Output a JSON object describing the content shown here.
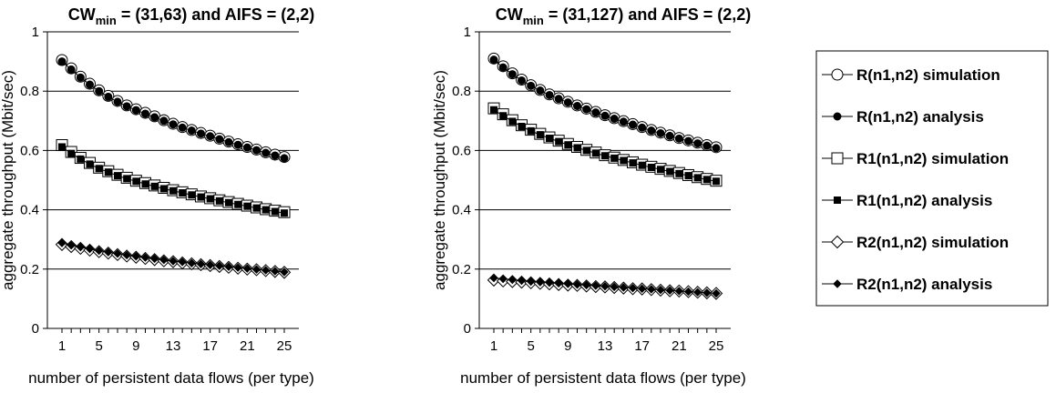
{
  "chart_data": [
    {
      "type": "line",
      "title": {
        "prefix": "CW",
        "sub": "min",
        "suffix": " = (31,63) and AIFS = (2,2)"
      },
      "xlabel": "number of persistent data flows (per type)",
      "ylabel": "aggregate throughput (Mbit/sec)",
      "xlim": [
        1,
        25
      ],
      "ylim": [
        0,
        1
      ],
      "xticks": [
        1,
        5,
        9,
        13,
        17,
        21,
        25
      ],
      "yticks": [
        "0",
        "0.2",
        "0.4",
        "0.6",
        "0.8",
        "1"
      ],
      "grid": "horizontal",
      "x": [
        1,
        2,
        3,
        4,
        5,
        6,
        7,
        8,
        9,
        10,
        11,
        12,
        13,
        14,
        15,
        16,
        17,
        18,
        19,
        20,
        21,
        22,
        23,
        24,
        25
      ],
      "series": [
        {
          "name": "R(n1,n2) simulation",
          "marker": "circle-open",
          "values": [
            0.905,
            0.877,
            0.849,
            0.825,
            0.803,
            0.784,
            0.767,
            0.752,
            0.739,
            0.727,
            0.715,
            0.702,
            0.69,
            0.679,
            0.669,
            0.659,
            0.65,
            0.64,
            0.63,
            0.621,
            0.612,
            0.603,
            0.594,
            0.586,
            0.578
          ]
        },
        {
          "name": "R(n1,n2) analysis",
          "marker": "circle-filled",
          "values": [
            0.9,
            0.873,
            0.846,
            0.822,
            0.8,
            0.781,
            0.764,
            0.749,
            0.736,
            0.724,
            0.712,
            0.7,
            0.688,
            0.677,
            0.667,
            0.657,
            0.648,
            0.638,
            0.628,
            0.619,
            0.61,
            0.601,
            0.592,
            0.583,
            0.574
          ]
        },
        {
          "name": "R1(n1,n2) simulation",
          "marker": "square-open",
          "values": [
            0.618,
            0.595,
            0.575,
            0.558,
            0.542,
            0.53,
            0.518,
            0.508,
            0.498,
            0.49,
            0.482,
            0.474,
            0.466,
            0.459,
            0.452,
            0.445,
            0.439,
            0.432,
            0.426,
            0.42,
            0.414,
            0.408,
            0.402,
            0.397,
            0.392
          ]
        },
        {
          "name": "R1(n1,n2) analysis",
          "marker": "square-filled",
          "values": [
            0.612,
            0.59,
            0.571,
            0.554,
            0.539,
            0.527,
            0.515,
            0.505,
            0.496,
            0.487,
            0.479,
            0.471,
            0.464,
            0.457,
            0.45,
            0.443,
            0.437,
            0.43,
            0.424,
            0.418,
            0.412,
            0.406,
            0.4,
            0.394,
            0.389
          ]
        },
        {
          "name": "R2(n1,n2) simulation",
          "marker": "diamond-open",
          "values": [
            0.283,
            0.276,
            0.27,
            0.264,
            0.259,
            0.254,
            0.249,
            0.244,
            0.24,
            0.236,
            0.232,
            0.228,
            0.225,
            0.221,
            0.218,
            0.215,
            0.212,
            0.209,
            0.206,
            0.203,
            0.2,
            0.198,
            0.195,
            0.192,
            0.189
          ]
        },
        {
          "name": "R2(n1,n2) analysis",
          "marker": "diamond-filled",
          "values": [
            0.288,
            0.28,
            0.274,
            0.268,
            0.262,
            0.257,
            0.252,
            0.247,
            0.243,
            0.239,
            0.235,
            0.231,
            0.227,
            0.224,
            0.22,
            0.217,
            0.214,
            0.211,
            0.208,
            0.205,
            0.202,
            0.199,
            0.196,
            0.193,
            0.19
          ]
        }
      ]
    },
    {
      "type": "line",
      "title": {
        "prefix": "CW",
        "sub": "min",
        "suffix": " = (31,127) and AIFS = (2,2)"
      },
      "xlabel": "number of persistent data flows (per type)",
      "ylabel": "aggregate throughput (Mbit/sec)",
      "xlim": [
        1,
        25
      ],
      "ylim": [
        0,
        1
      ],
      "xticks": [
        1,
        5,
        9,
        13,
        17,
        21,
        25
      ],
      "yticks": [
        "0",
        "0.2",
        "0.4",
        "0.6",
        "0.8",
        "1"
      ],
      "grid": "horizontal",
      "x": [
        1,
        2,
        3,
        4,
        5,
        6,
        7,
        8,
        9,
        10,
        11,
        12,
        13,
        14,
        15,
        16,
        17,
        18,
        19,
        20,
        21,
        22,
        23,
        24,
        25
      ],
      "series": [
        {
          "name": "R(n1,n2) simulation",
          "marker": "circle-open",
          "values": [
            0.91,
            0.884,
            0.86,
            0.839,
            0.82,
            0.804,
            0.789,
            0.776,
            0.764,
            0.752,
            0.741,
            0.73,
            0.719,
            0.709,
            0.699,
            0.689,
            0.679,
            0.669,
            0.66,
            0.651,
            0.642,
            0.634,
            0.626,
            0.618,
            0.611
          ]
        },
        {
          "name": "R(n1,n2) analysis",
          "marker": "circle-filled",
          "values": [
            0.906,
            0.88,
            0.857,
            0.836,
            0.818,
            0.802,
            0.787,
            0.774,
            0.762,
            0.75,
            0.739,
            0.728,
            0.717,
            0.707,
            0.697,
            0.687,
            0.677,
            0.667,
            0.658,
            0.649,
            0.64,
            0.632,
            0.624,
            0.616,
            0.608
          ]
        },
        {
          "name": "R1(n1,n2) simulation",
          "marker": "square-open",
          "values": [
            0.742,
            0.722,
            0.702,
            0.685,
            0.67,
            0.656,
            0.644,
            0.633,
            0.622,
            0.612,
            0.602,
            0.593,
            0.584,
            0.576,
            0.568,
            0.56,
            0.552,
            0.545,
            0.538,
            0.531,
            0.524,
            0.517,
            0.51,
            0.504,
            0.498
          ]
        },
        {
          "name": "R1(n1,n2) analysis",
          "marker": "square-filled",
          "values": [
            0.737,
            0.717,
            0.698,
            0.681,
            0.666,
            0.653,
            0.641,
            0.63,
            0.619,
            0.609,
            0.6,
            0.591,
            0.582,
            0.574,
            0.566,
            0.558,
            0.55,
            0.543,
            0.536,
            0.529,
            0.522,
            0.515,
            0.508,
            0.502,
            0.496
          ]
        },
        {
          "name": "R2(n1,n2) simulation",
          "marker": "diamond-open",
          "values": [
            0.163,
            0.16,
            0.158,
            0.156,
            0.154,
            0.152,
            0.15,
            0.148,
            0.146,
            0.145,
            0.143,
            0.141,
            0.14,
            0.138,
            0.136,
            0.134,
            0.133,
            0.131,
            0.129,
            0.127,
            0.126,
            0.124,
            0.122,
            0.12,
            0.118
          ]
        },
        {
          "name": "R2(n1,n2) analysis",
          "marker": "diamond-filled",
          "values": [
            0.17,
            0.167,
            0.164,
            0.161,
            0.158,
            0.156,
            0.154,
            0.152,
            0.15,
            0.148,
            0.146,
            0.144,
            0.142,
            0.14,
            0.138,
            0.136,
            0.134,
            0.132,
            0.13,
            0.128,
            0.126,
            0.124,
            0.122,
            0.12,
            0.118
          ]
        }
      ]
    }
  ]
}
